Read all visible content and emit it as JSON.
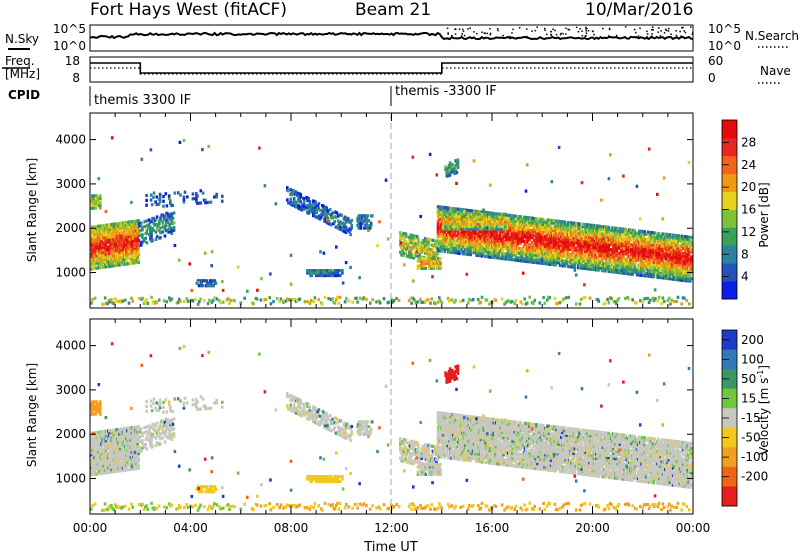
{
  "header": {
    "station": "Fort Hays West (fitACF)",
    "beam": "Beam 21",
    "date": "10/Mar/2016"
  },
  "colors": {
    "trace": "#000000",
    "dash": "#b4b4b4",
    "ground_scatter": "#c8c8c0"
  },
  "top_panels": {
    "nsky": {
      "label": "N.Sky",
      "ticks": [
        "10^5",
        "10^0"
      ],
      "right_label": "N.Search",
      "right_ticks": [
        "10^5",
        "10^0"
      ]
    },
    "freq": {
      "label_line1": "Freq.",
      "label_line2": "[MHz]",
      "ticks": [
        "18",
        "8"
      ],
      "right_label": "Nave",
      "right_ticks": [
        "60",
        "0"
      ]
    },
    "cpid": {
      "label": "CPID",
      "segments": [
        {
          "label": "themis 3300 IF",
          "start_hr": 0,
          "end_hr": 12
        },
        {
          "label": "themis -3300 IF",
          "start_hr": 12,
          "end_hr": 24
        }
      ]
    }
  },
  "chart_data": [
    {
      "type": "heatmap",
      "name": "power",
      "xlabel": "",
      "ylabel": "Slant Range [km]",
      "xlim": [
        0,
        24
      ],
      "ylim": [
        200,
        4600
      ],
      "yticks": [
        "1000",
        "2000",
        "3000",
        "4000"
      ],
      "colorbar": {
        "label": "Power [dB]",
        "ticks": [
          "4",
          "8",
          "12",
          "16",
          "20",
          "24",
          "28"
        ],
        "colors": [
          "#0a1ee6",
          "#2352b8",
          "#2a82a0",
          "#3ba05a",
          "#7fc23a",
          "#e6d21e",
          "#f09a14",
          "#f0641e",
          "#e6281e",
          "#e60a0a"
        ]
      }
    },
    {
      "type": "heatmap",
      "name": "velocity",
      "xlabel": "Time UT",
      "ylabel": "Slant Range [km]",
      "xlim": [
        0,
        24
      ],
      "ylim": [
        200,
        4600
      ],
      "xticks": [
        "00:00",
        "04:00",
        "08:00",
        "12:00",
        "16:00",
        "20:00",
        "00:00"
      ],
      "yticks": [
        "1000",
        "2000",
        "3000",
        "4000"
      ],
      "colorbar": {
        "label": "Velocity [m s-1]",
        "label_main": "Velocity [m s",
        "label_sup": "-1",
        "label_end": "]",
        "ticks": [
          "200",
          "100",
          "50",
          "15",
          "-15",
          "-50",
          "-100",
          "-200"
        ],
        "colors": [
          "#1e3cc8",
          "#3278b4",
          "#3c9664",
          "#6ec83c",
          "#c8c8c0",
          "#f0c81e",
          "#f0a01e",
          "#f06414",
          "#e61e1e"
        ]
      }
    }
  ]
}
